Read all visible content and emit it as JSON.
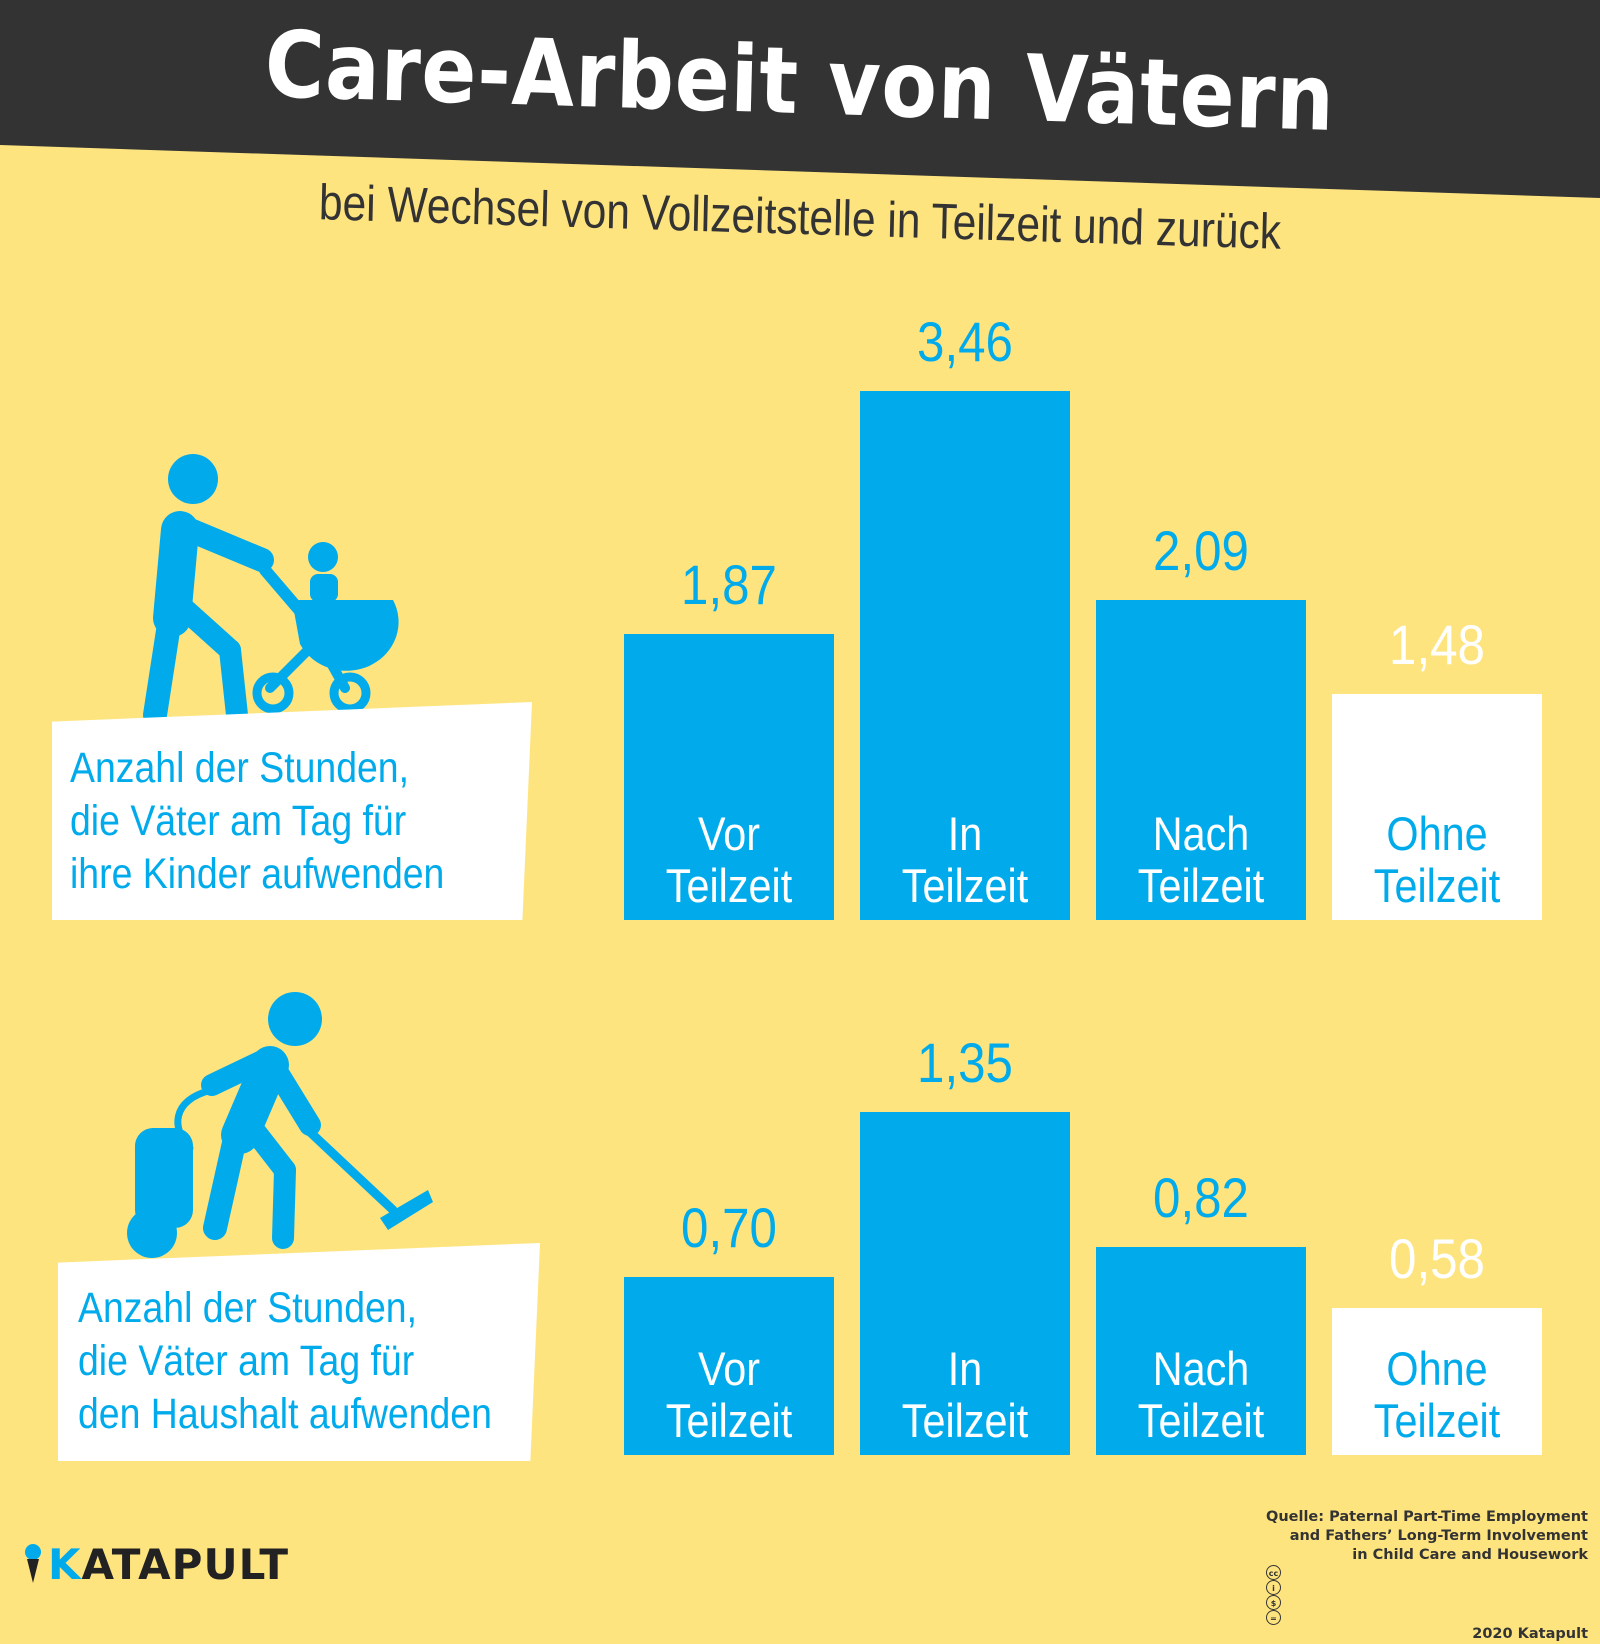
{
  "title": "Care-Arbeit von Vätern",
  "subtitle": "bei Wechsel von Vollzeitstelle in Teilzeit und zurück",
  "colors": {
    "background": "#fee47f",
    "header": "#333333",
    "blue": "#01abeb",
    "white": "#ffffff"
  },
  "panels": [
    {
      "label_lines": [
        "Anzahl der Stunden,",
        "die Väter am Tag für",
        "ihre Kinder aufwenden"
      ],
      "icon": "father-with-stroller-icon"
    },
    {
      "label_lines": [
        "Anzahl der Stunden,",
        "die Väter am Tag für",
        "den Haushalt aufwenden"
      ],
      "icon": "father-vacuuming-icon"
    }
  ],
  "chart_data": [
    {
      "type": "bar",
      "categories": [
        [
          "Vor",
          "Teilzeit"
        ],
        [
          "In",
          "Teilzeit"
        ],
        [
          "Nach",
          "Teilzeit"
        ],
        [
          "Ohne",
          "Teilzeit"
        ]
      ],
      "values": [
        1.87,
        3.46,
        2.09,
        1.48
      ],
      "value_labels": [
        "1,87",
        "3,46",
        "2,09",
        "1,48"
      ],
      "bar_colors": [
        "#01abeb",
        "#01abeb",
        "#01abeb",
        "#ffffff"
      ]
    },
    {
      "type": "bar",
      "categories": [
        [
          "Vor",
          "Teilzeit"
        ],
        [
          "In",
          "Teilzeit"
        ],
        [
          "Nach",
          "Teilzeit"
        ],
        [
          "Ohne",
          "Teilzeit"
        ]
      ],
      "values": [
        0.7,
        1.35,
        0.82,
        0.58
      ],
      "value_labels": [
        "0,70",
        "1,35",
        "0,82",
        "0,58"
      ],
      "bar_colors": [
        "#01abeb",
        "#01abeb",
        "#01abeb",
        "#ffffff"
      ]
    }
  ],
  "source": {
    "lines": [
      "Quelle: Paternal Part-Time Employment",
      "and Fathers’ Long-Term Involvement",
      "in Child Care and Housework"
    ],
    "license_icons": [
      "cc-icon",
      "by-icon",
      "nc-icon",
      "nd-icon"
    ],
    "copyright": "2020 Katapult"
  },
  "logo": {
    "k": "K",
    "rest": "ATAPULT",
    "icon": "katapult-catapult-icon"
  }
}
